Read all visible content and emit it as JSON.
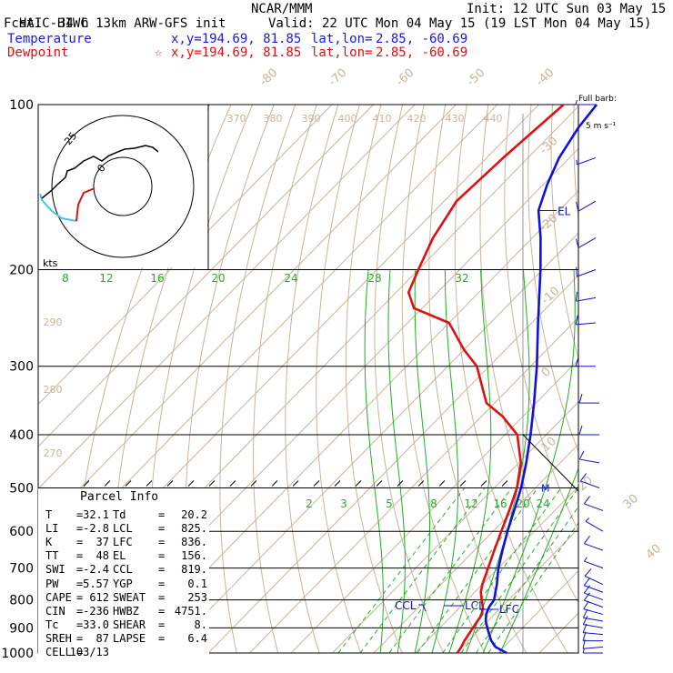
{
  "header": {
    "model": "HAIC-HIWC 13km ARW-GFS init",
    "org": "NCAR/MMM",
    "init": "Init: 12 UTC Sun 03 May 15",
    "fcst_label": "Fcst:",
    "fcst_value": "34 h",
    "valid": "Valid: 22 UTC Mon 04 May 15 (19 LST Mon 04 May 15)",
    "temp_label": "Temperature",
    "dew_label": "Dewpoint",
    "temp_xy": "x,y=194.69, 81.85",
    "dew_xy": "x,y=194.69, 81.85",
    "star": "☆",
    "latlon_label": "lat,lon=",
    "latlon_value": "2.85, -60.69"
  },
  "colors": {
    "temperature": "#1010e0",
    "dewpoint": "#e01010",
    "mixing_ratio": "#20b020",
    "dry_adiabat": "#c8b49a",
    "isotherm": "#c8b49a",
    "hodo_upper": "#000000",
    "hodo_lower": "#e01010",
    "hodo_surface": "#40c8e8",
    "barb": "#1010c8"
  },
  "barb_panel": {
    "title_line1": "Full barb:",
    "title_line2": "5 m s⁻¹"
  },
  "hodograph": {
    "ring_labels": [
      "25",
      "0"
    ],
    "kts_label": "kts"
  },
  "parcel_info": {
    "title": "Parcel Info",
    "rows": [
      {
        "k1": "T",
        "v1": "32.1",
        "k2": "Td",
        "v2": "20.2"
      },
      {
        "k1": "LI",
        "v1": "-2.8",
        "k2": "LCL",
        "v2": "825."
      },
      {
        "k1": "K",
        "v1": "37",
        "k2": "LFC",
        "v2": "836."
      },
      {
        "k1": "TT",
        "v1": "48",
        "k2": "EL",
        "v2": "156."
      },
      {
        "k1": "SWI",
        "v1": "-2.4",
        "k2": "CCL",
        "v2": "819."
      },
      {
        "k1": "PW",
        "v1": "5.57",
        "k2": "YGP",
        "v2": "0.1"
      },
      {
        "k1": "CAPE",
        "v1": "612",
        "k2": "SWEAT",
        "v2": "253"
      },
      {
        "k1": "CIN",
        "v1": "-236",
        "k2": "HWBZ",
        "v2": "4751."
      },
      {
        "k1": "Tc",
        "v1": "33.0",
        "k2": "SHEAR",
        "v2": "8."
      },
      {
        "k1": "SREH",
        "v1": "87",
        "k2": "LAPSE",
        "v2": "6.4"
      },
      {
        "k1": "CELL",
        "v1": "103/13",
        "k2": "",
        "v2": ""
      }
    ]
  },
  "chart_data": {
    "type": "line",
    "diagram": "skew-T log-p",
    "y_axis": {
      "scale": "log",
      "units": "hPa",
      "ticks": [
        100,
        200,
        300,
        400,
        500,
        600,
        700,
        800,
        900,
        1000
      ],
      "range": [
        100,
        1000
      ]
    },
    "isotherm_labels": [
      "-80",
      "-70",
      "-60",
      "-50",
      "-40",
      "-30",
      "-20",
      "-10",
      "0",
      "10",
      "20",
      "30",
      "40"
    ],
    "theta_labels_top": [
      "370",
      "380",
      "390",
      "400",
      "410",
      "420",
      "430",
      "440"
    ],
    "theta_labels_left": [
      "290",
      "280",
      "270"
    ],
    "mixing_ratio_labels_upper": [
      "8",
      "12",
      "16",
      "20",
      "24",
      "28",
      "32"
    ],
    "mixing_ratio_labels_lower": [
      "2",
      "3",
      "5",
      "8",
      "12",
      "16",
      "20",
      "24"
    ],
    "series": [
      {
        "name": "Temperature",
        "points": [
          {
            "p": 1000,
            "t": 32.1
          },
          {
            "p": 975,
            "t": 28.0
          },
          {
            "p": 950,
            "t": 25.5
          },
          {
            "p": 925,
            "t": 23.5
          },
          {
            "p": 900,
            "t": 21.5
          },
          {
            "p": 875,
            "t": 19.5
          },
          {
            "p": 850,
            "t": 18.0
          },
          {
            "p": 825,
            "t": 17.0
          },
          {
            "p": 800,
            "t": 16.5
          },
          {
            "p": 775,
            "t": 15.0
          },
          {
            "p": 750,
            "t": 13.5
          },
          {
            "p": 700,
            "t": 10.0
          },
          {
            "p": 650,
            "t": 6.8
          },
          {
            "p": 600,
            "t": 3.5
          },
          {
            "p": 550,
            "t": 0.2
          },
          {
            "p": 500,
            "t": -3.5
          },
          {
            "p": 450,
            "t": -8.2
          },
          {
            "p": 400,
            "t": -13.8
          },
          {
            "p": 350,
            "t": -20.5
          },
          {
            "p": 300,
            "t": -28.5
          },
          {
            "p": 250,
            "t": -38.5
          },
          {
            "p": 200,
            "t": -50.5
          },
          {
            "p": 175,
            "t": -58.0
          },
          {
            "p": 156,
            "t": -65.0
          },
          {
            "p": 140,
            "t": -69.0
          },
          {
            "p": 125,
            "t": -72.5
          },
          {
            "p": 110,
            "t": -75.0
          },
          {
            "p": 100,
            "t": -76.0
          }
        ]
      },
      {
        "name": "Dewpoint",
        "points": [
          {
            "p": 1000,
            "t": 20.2
          },
          {
            "p": 975,
            "t": 19.7
          },
          {
            "p": 950,
            "t": 19.0
          },
          {
            "p": 925,
            "t": 18.5
          },
          {
            "p": 900,
            "t": 18.0
          },
          {
            "p": 875,
            "t": 17.5
          },
          {
            "p": 850,
            "t": 17.0
          },
          {
            "p": 825,
            "t": 15.5
          },
          {
            "p": 800,
            "t": 13.5
          },
          {
            "p": 775,
            "t": 11.5
          },
          {
            "p": 750,
            "t": 10.0
          },
          {
            "p": 700,
            "t": 7.5
          },
          {
            "p": 650,
            "t": 4.8
          },
          {
            "p": 600,
            "t": 2.0
          },
          {
            "p": 550,
            "t": -1.0
          },
          {
            "p": 500,
            "t": -4.5
          },
          {
            "p": 450,
            "t": -9.5
          },
          {
            "p": 400,
            "t": -17.0
          },
          {
            "p": 370,
            "t": -25.0
          },
          {
            "p": 350,
            "t": -32.0
          },
          {
            "p": 300,
            "t": -43.0
          },
          {
            "p": 280,
            "t": -50.0
          },
          {
            "p": 250,
            "t": -60.0
          },
          {
            "p": 235,
            "t": -72.0
          },
          {
            "p": 220,
            "t": -77.0
          },
          {
            "p": 200,
            "t": -80.0
          },
          {
            "p": 175,
            "t": -84.0
          },
          {
            "p": 150,
            "t": -87.0
          },
          {
            "p": 125,
            "t": -86.0
          },
          {
            "p": 100,
            "t": -84.0
          }
        ]
      }
    ],
    "annotations": [
      {
        "label": "EL",
        "p": 156
      },
      {
        "label": "M",
        "p": 500
      },
      {
        "label": "CCL",
        "p": 819
      },
      {
        "label": "LCL",
        "p": 825
      },
      {
        "label": "LFC",
        "p": 836
      }
    ],
    "wind_barbs": [
      {
        "p": 1000,
        "dir": 90,
        "spd": 3
      },
      {
        "p": 975,
        "dir": 95,
        "spd": 4
      },
      {
        "p": 950,
        "dir": 90,
        "spd": 5
      },
      {
        "p": 925,
        "dir": 85,
        "spd": 6
      },
      {
        "p": 900,
        "dir": 80,
        "spd": 6
      },
      {
        "p": 875,
        "dir": 80,
        "spd": 5
      },
      {
        "p": 850,
        "dir": 75,
        "spd": 5
      },
      {
        "p": 825,
        "dir": 70,
        "spd": 5
      },
      {
        "p": 800,
        "dir": 70,
        "spd": 4
      },
      {
        "p": 775,
        "dir": 70,
        "spd": 4
      },
      {
        "p": 750,
        "dir": 65,
        "spd": 4
      },
      {
        "p": 700,
        "dir": 70,
        "spd": 3
      },
      {
        "p": 650,
        "dir": 70,
        "spd": 4
      },
      {
        "p": 600,
        "dir": 60,
        "spd": 3
      },
      {
        "p": 550,
        "dir": 70,
        "spd": 4
      },
      {
        "p": 500,
        "dir": 70,
        "spd": 4
      },
      {
        "p": 450,
        "dir": 80,
        "spd": 4
      },
      {
        "p": 400,
        "dir": 90,
        "spd": 5
      },
      {
        "p": 350,
        "dir": 90,
        "spd": 5
      },
      {
        "p": 300,
        "dir": 90,
        "spd": 6
      },
      {
        "p": 250,
        "dir": 95,
        "spd": 6
      },
      {
        "p": 225,
        "dir": 100,
        "spd": 5
      },
      {
        "p": 200,
        "dir": 110,
        "spd": 6
      },
      {
        "p": 175,
        "dir": 120,
        "spd": 6
      },
      {
        "p": 150,
        "dir": 120,
        "spd": 4
      },
      {
        "p": 125,
        "dir": 110,
        "spd": 3
      },
      {
        "p": 100,
        "dir": 90,
        "spd": 2
      }
    ]
  }
}
